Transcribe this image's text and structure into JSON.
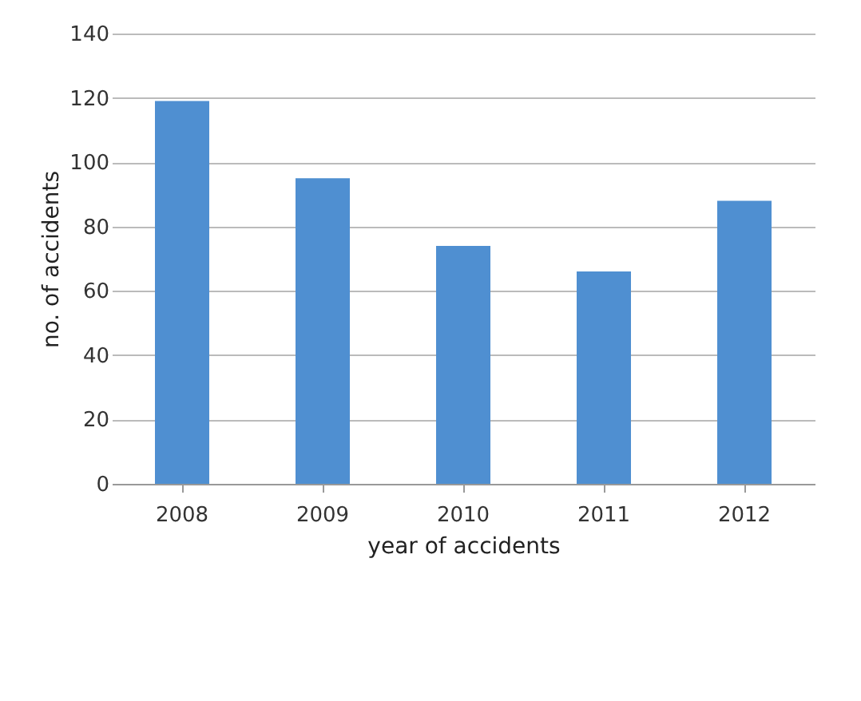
{
  "chart_data": {
    "type": "bar",
    "xlabel": "year of accidents",
    "ylabel": "no. of accidents",
    "categories": [
      "2008",
      "2009",
      "2010",
      "2011",
      "2012"
    ],
    "values": [
      119,
      95,
      74,
      66,
      88
    ],
    "color": "#4f8fd1",
    "ylim": [
      0,
      140
    ],
    "yticks": [
      0,
      20,
      40,
      60,
      80,
      100,
      120,
      140
    ],
    "grid": "y"
  }
}
